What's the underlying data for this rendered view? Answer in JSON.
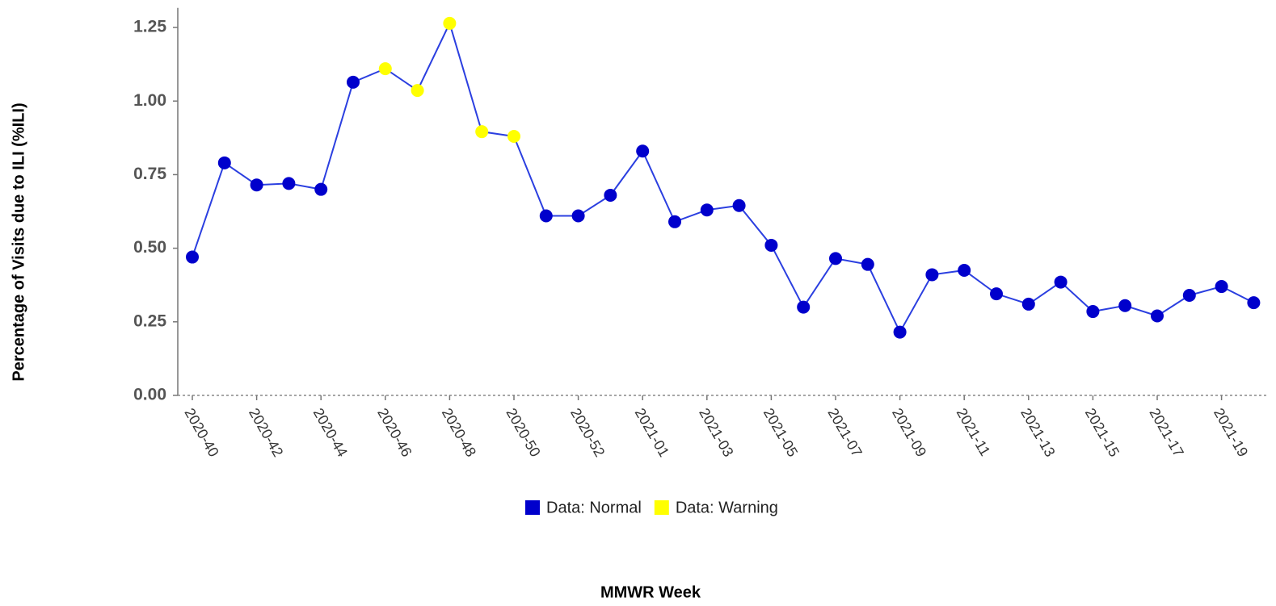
{
  "chart_data": {
    "type": "line",
    "y_label": "Percentage of Visits due to ILI (%ILI)",
    "x_label": "MMWR Week",
    "categories": [
      "2020-40",
      null,
      "2020-42",
      null,
      "2020-44",
      null,
      "2020-46",
      null,
      "2020-48",
      null,
      "2020-50",
      null,
      "2020-52",
      null,
      "2021-01",
      null,
      "2021-03",
      null,
      "2021-05",
      null,
      "2021-07",
      null,
      "2021-09",
      null,
      "2021-11",
      null,
      "2021-13",
      null,
      "2021-15",
      null,
      "2021-17",
      null,
      "2021-19",
      null
    ],
    "values": [
      0.47,
      0.79,
      0.715,
      0.72,
      0.7,
      1.064,
      1.11,
      1.036,
      1.264,
      0.896,
      0.88,
      0.61,
      0.61,
      0.68,
      0.83,
      0.59,
      0.63,
      0.645,
      0.51,
      0.3,
      0.465,
      0.445,
      0.215,
      0.41,
      0.425,
      0.345,
      0.31,
      0.385,
      0.285,
      0.305,
      0.27,
      0.34,
      0.37,
      0.315
    ],
    "line_color": "#2b3fe0",
    "point_colors": [
      "#0000cc",
      "#0000cc",
      "#0000cc",
      "#0000cc",
      "#0000cc",
      "#0000cc",
      "#ffff00",
      "#ffff00",
      "#ffff00",
      "#ffff00",
      "#ffff00",
      "#0000cc",
      "#0000cc",
      "#0000cc",
      "#0000cc",
      "#0000cc",
      "#0000cc",
      "#0000cc",
      "#0000cc",
      "#0000cc",
      "#0000cc",
      "#0000cc",
      "#0000cc",
      "#0000cc",
      "#0000cc",
      "#0000cc",
      "#0000cc",
      "#0000cc",
      "#0000cc",
      "#0000cc",
      "#0000cc",
      "#0000cc",
      "#0000cc",
      "#0000cc"
    ],
    "legend": [
      {
        "name": "Data: Normal",
        "color": "#0000cc"
      },
      {
        "name": "Data: Warning",
        "color": "#ffff00"
      }
    ],
    "ylim": [
      0,
      1.3
    ],
    "yticks": [
      {
        "value": 0,
        "label": "0.00"
      },
      {
        "value": 0.25,
        "label": "0.25"
      },
      {
        "value": 0.5,
        "label": "0.50"
      },
      {
        "value": 0.75,
        "label": "0.75"
      },
      {
        "value": 1,
        "label": "1.00"
      },
      {
        "value": 1.25,
        "label": "1.25"
      }
    ]
  }
}
